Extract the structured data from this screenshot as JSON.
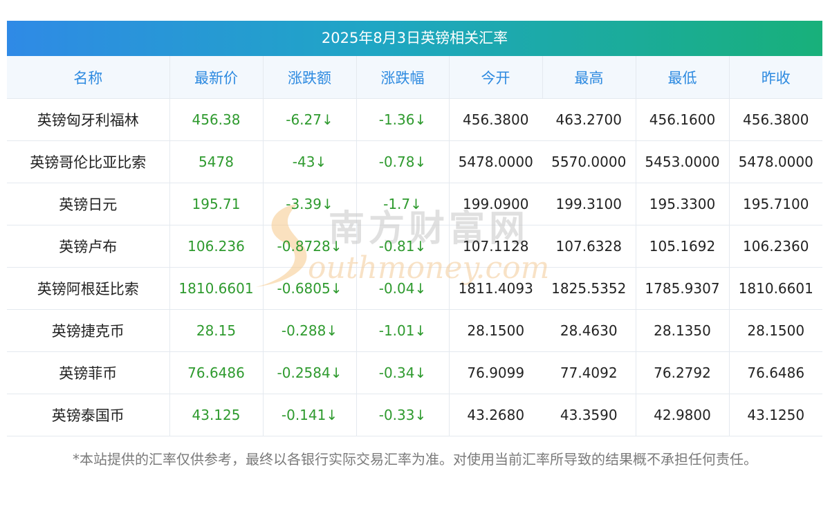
{
  "title": "2025年8月3日英镑相关汇率",
  "columns": [
    "名称",
    "最新价",
    "涨跌额",
    "涨跌幅",
    "今开",
    "最高",
    "最低",
    "昨收"
  ],
  "rows": [
    {
      "name": "英镑匈牙利福林",
      "latest": "456.38",
      "change": "-6.27↓",
      "change_pct": "-1.36↓",
      "open": "456.3800",
      "high": "463.2700",
      "low": "456.1600",
      "prev_close": "456.3800"
    },
    {
      "name": "英镑哥伦比亚比索",
      "latest": "5478",
      "change": "-43↓",
      "change_pct": "-0.78↓",
      "open": "5478.0000",
      "high": "5570.0000",
      "low": "5453.0000",
      "prev_close": "5478.0000"
    },
    {
      "name": "英镑日元",
      "latest": "195.71",
      "change": "-3.39↓",
      "change_pct": "-1.7↓",
      "open": "199.0900",
      "high": "199.3100",
      "low": "195.3300",
      "prev_close": "195.7100"
    },
    {
      "name": "英镑卢布",
      "latest": "106.236",
      "change": "-0.8728↓",
      "change_pct": "-0.81↓",
      "open": "107.1128",
      "high": "107.6328",
      "low": "105.1692",
      "prev_close": "106.2360"
    },
    {
      "name": "英镑阿根廷比索",
      "latest": "1810.6601",
      "change": "-0.6805↓",
      "change_pct": "-0.04↓",
      "open": "1811.4093",
      "high": "1825.5352",
      "low": "1785.9307",
      "prev_close": "1810.6601"
    },
    {
      "name": "英镑捷克币",
      "latest": "28.15",
      "change": "-0.288↓",
      "change_pct": "-1.01↓",
      "open": "28.1500",
      "high": "28.4630",
      "low": "28.1350",
      "prev_close": "28.1500"
    },
    {
      "name": "英镑菲币",
      "latest": "76.6486",
      "change": "-0.2584↓",
      "change_pct": "-0.34↓",
      "open": "76.9099",
      "high": "77.4092",
      "low": "76.2792",
      "prev_close": "76.6486"
    },
    {
      "name": "英镑泰国币",
      "latest": "43.125",
      "change": "-0.141↓",
      "change_pct": "-0.33↓",
      "open": "43.2680",
      "high": "43.3590",
      "low": "42.9800",
      "prev_close": "43.1250"
    }
  ],
  "footnote": "*本站提供的汇率仅供参考，最终以各银行实际交易汇率为准。对使用当前汇率所导致的结果概不承担任何责任。",
  "watermark": {
    "text_cn": "南方财富网",
    "text_en": "outhmoney.com"
  },
  "colors": {
    "header_text": "#2d8ae0",
    "value_green": "#2e9a2e",
    "title_start": "#2f8ae6",
    "title_end": "#18b07a"
  }
}
